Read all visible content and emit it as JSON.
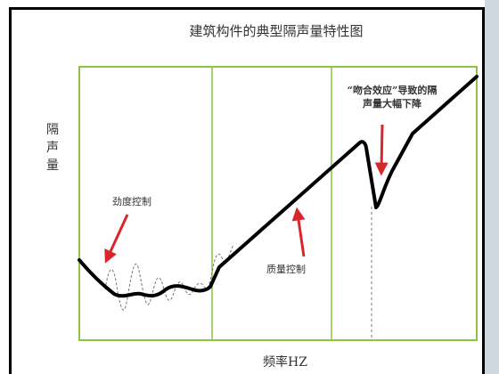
{
  "title": "建筑构件的典型隔声量特性图",
  "y_axis_label": "隔声量",
  "x_axis_label": "频率HZ",
  "annotations": {
    "stiffness": "劲度控制",
    "mass": "质量控制",
    "coincidence_line1": "“吻合效应”导致的隔",
    "coincidence_line2": "声量大幅下降"
  },
  "colors": {
    "plot_border": "#8cc63f",
    "curve": "#000000",
    "arrow": "#d9262a",
    "dashed": "#777777",
    "gutter": "#cfd8df"
  }
}
